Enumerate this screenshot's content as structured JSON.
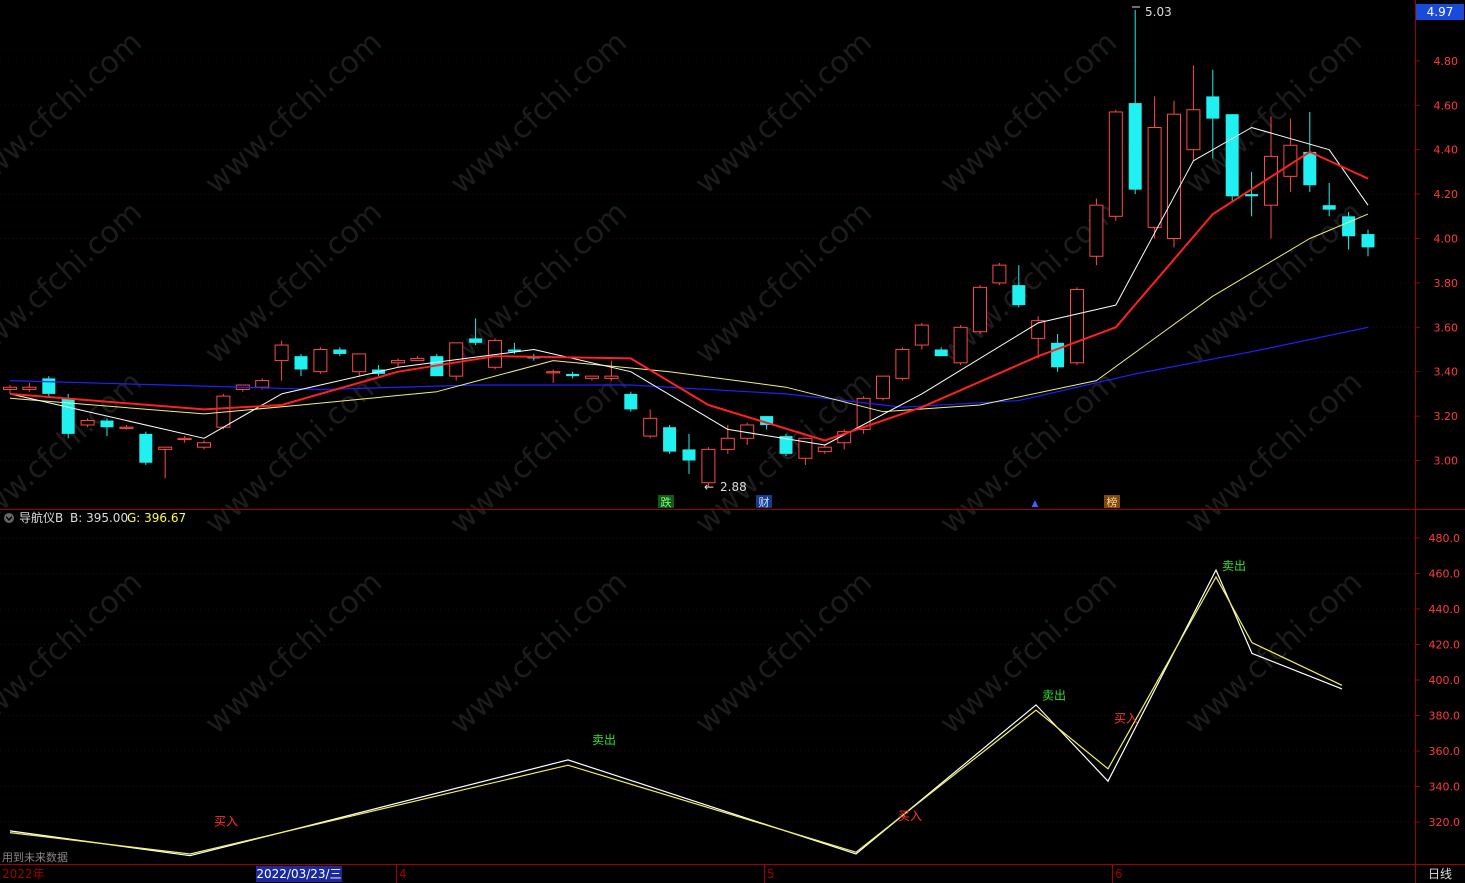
{
  "price_axis": {
    "ticks": [
      "4.80",
      "4.60",
      "4.40",
      "4.20",
      "4.00",
      "3.80",
      "3.60",
      "3.40",
      "3.20",
      "3.00"
    ],
    "current_price": "4.97",
    "current_color": "#1a4ad8"
  },
  "indicator": {
    "name": "导航仪B",
    "b_label": "B: 395.00",
    "g_label": "G: 396.67",
    "ticks": [
      "480.0",
      "460.0",
      "440.0",
      "420.0",
      "400.0",
      "380.0",
      "360.0",
      "340.0",
      "320.0"
    ],
    "note": "用到未来数据"
  },
  "date_bar": {
    "year": "2022年",
    "cursor_date": "2022/03/23/三",
    "months": [
      "4",
      "5",
      "6"
    ],
    "period": "日线"
  },
  "annotations": {
    "high": "5.03",
    "low": "2.88"
  },
  "event_tags": [
    "跌",
    "财",
    "▲",
    "榜"
  ],
  "signals": {
    "buy": "买入",
    "sell": "卖出"
  },
  "watermark": "www.cfchi.com",
  "colors": {
    "up": "#ff4848",
    "down": "#20f0f0",
    "ma_white": "#ffffff",
    "ma_red": "#ff2020",
    "ma_yellow": "#f0f080",
    "ma_blue": "#2020ff",
    "axis": "#a00000",
    "buy": "#ff3030",
    "sell": "#30e030"
  },
  "chart_data": [
    {
      "type": "candlestick",
      "title": "",
      "ylim": [
        2.8,
        5.05
      ],
      "candles": [
        [
          3.32,
          3.33,
          3.3,
          3.34
        ],
        [
          3.32,
          3.33,
          3.31,
          3.35
        ],
        [
          3.37,
          3.3,
          3.29,
          3.38
        ],
        [
          3.28,
          3.12,
          3.1,
          3.3
        ],
        [
          3.16,
          3.18,
          3.15,
          3.19
        ],
        [
          3.18,
          3.15,
          3.11,
          3.19
        ],
        [
          3.15,
          3.15,
          3.14,
          3.16
        ],
        [
          3.12,
          2.99,
          2.98,
          3.13
        ],
        [
          3.05,
          3.06,
          2.92,
          3.06
        ],
        [
          3.1,
          3.1,
          3.08,
          3.11
        ],
        [
          3.06,
          3.08,
          3.05,
          3.09
        ],
        [
          3.15,
          3.29,
          3.14,
          3.3
        ],
        [
          3.32,
          3.34,
          3.31,
          3.34
        ],
        [
          3.33,
          3.36,
          3.32,
          3.37
        ],
        [
          3.45,
          3.52,
          3.36,
          3.54
        ],
        [
          3.47,
          3.41,
          3.38,
          3.48
        ],
        [
          3.4,
          3.5,
          3.39,
          3.51
        ],
        [
          3.5,
          3.48,
          3.47,
          3.51
        ],
        [
          3.4,
          3.48,
          3.38,
          3.48
        ],
        [
          3.41,
          3.39,
          3.38,
          3.43
        ],
        [
          3.44,
          3.45,
          3.42,
          3.46
        ],
        [
          3.45,
          3.46,
          3.45,
          3.47
        ],
        [
          3.47,
          3.38,
          3.38,
          3.48
        ],
        [
          3.38,
          3.53,
          3.36,
          3.53
        ],
        [
          3.55,
          3.53,
          3.52,
          3.64
        ],
        [
          3.42,
          3.54,
          3.41,
          3.55
        ],
        [
          3.5,
          3.49,
          3.48,
          3.53
        ],
        [
          3.47,
          3.46,
          3.45,
          3.48
        ],
        [
          3.4,
          3.4,
          3.35,
          3.41
        ],
        [
          3.39,
          3.38,
          3.37,
          3.4
        ],
        [
          3.37,
          3.38,
          3.36,
          3.38
        ],
        [
          3.37,
          3.38,
          3.36,
          3.45
        ],
        [
          3.3,
          3.23,
          3.22,
          3.31
        ],
        [
          3.11,
          3.19,
          3.1,
          3.23
        ],
        [
          3.15,
          3.04,
          3.03,
          3.16
        ],
        [
          3.05,
          3.0,
          2.94,
          3.12
        ],
        [
          2.9,
          3.05,
          2.88,
          3.06
        ],
        [
          3.05,
          3.1,
          3.03,
          3.16
        ],
        [
          3.1,
          3.16,
          3.07,
          3.17
        ],
        [
          3.2,
          3.16,
          3.14,
          3.2
        ],
        [
          3.11,
          3.03,
          3.02,
          3.12
        ],
        [
          3.01,
          3.1,
          2.98,
          3.1
        ],
        [
          3.04,
          3.06,
          3.03,
          3.07
        ],
        [
          3.08,
          3.13,
          3.05,
          3.14
        ],
        [
          3.14,
          3.28,
          3.12,
          3.29
        ],
        [
          3.28,
          3.38,
          3.27,
          3.38
        ],
        [
          3.37,
          3.5,
          3.36,
          3.51
        ],
        [
          3.52,
          3.61,
          3.5,
          3.62
        ],
        [
          3.5,
          3.47,
          3.47,
          3.51
        ],
        [
          3.44,
          3.6,
          3.43,
          3.61
        ],
        [
          3.58,
          3.78,
          3.57,
          3.79
        ],
        [
          3.8,
          3.88,
          3.79,
          3.89
        ],
        [
          3.79,
          3.7,
          3.69,
          3.88
        ],
        [
          3.55,
          3.63,
          3.46,
          3.65
        ],
        [
          3.53,
          3.42,
          3.4,
          3.57
        ],
        [
          3.44,
          3.77,
          3.43,
          3.78
        ],
        [
          3.92,
          4.15,
          3.88,
          4.18
        ],
        [
          4.1,
          4.57,
          4.08,
          4.58
        ],
        [
          4.61,
          4.22,
          4.2,
          5.03
        ],
        [
          4.05,
          4.5,
          4.0,
          4.64
        ],
        [
          4.0,
          4.56,
          3.96,
          4.62
        ],
        [
          4.4,
          4.58,
          4.35,
          4.78
        ],
        [
          4.64,
          4.54,
          4.36,
          4.76
        ],
        [
          4.56,
          4.19,
          4.17,
          4.56
        ],
        [
          4.2,
          4.19,
          4.1,
          4.3
        ],
        [
          4.15,
          4.37,
          4.0,
          4.55
        ],
        [
          4.28,
          4.42,
          4.21,
          4.54
        ],
        [
          4.39,
          4.24,
          4.21,
          4.57
        ],
        [
          4.15,
          4.13,
          4.1,
          4.25
        ],
        [
          4.1,
          4.01,
          3.95,
          4.12
        ],
        [
          4.02,
          3.96,
          3.92,
          4.04
        ]
      ],
      "moving_averages": {
        "ma_white": [
          [
            0,
            3.3
          ],
          [
            10,
            3.1
          ],
          [
            14,
            3.3
          ],
          [
            20,
            3.42
          ],
          [
            27,
            3.5
          ],
          [
            32,
            3.4
          ],
          [
            37,
            3.14
          ],
          [
            42,
            3.07
          ],
          [
            47,
            3.3
          ],
          [
            53,
            3.62
          ],
          [
            57,
            3.7
          ],
          [
            61,
            4.35
          ],
          [
            64,
            4.5
          ],
          [
            68,
            4.4
          ],
          [
            70,
            4.15
          ]
        ],
        "ma_red": [
          [
            0,
            3.3
          ],
          [
            10,
            3.23
          ],
          [
            14,
            3.25
          ],
          [
            20,
            3.4
          ],
          [
            25,
            3.47
          ],
          [
            32,
            3.46
          ],
          [
            36,
            3.25
          ],
          [
            42,
            3.09
          ],
          [
            47,
            3.24
          ],
          [
            53,
            3.47
          ],
          [
            57,
            3.6
          ],
          [
            62,
            4.11
          ],
          [
            67,
            4.39
          ],
          [
            70,
            4.27
          ]
        ],
        "ma_yellow": [
          [
            0,
            3.28
          ],
          [
            10,
            3.21
          ],
          [
            15,
            3.25
          ],
          [
            22,
            3.31
          ],
          [
            28,
            3.45
          ],
          [
            34,
            3.4
          ],
          [
            40,
            3.33
          ],
          [
            45,
            3.22
          ],
          [
            50,
            3.25
          ],
          [
            56,
            3.36
          ],
          [
            62,
            3.74
          ],
          [
            67,
            4.0
          ],
          [
            70,
            4.11
          ]
        ],
        "ma_blue": [
          [
            0,
            3.36
          ],
          [
            8,
            3.34
          ],
          [
            16,
            3.32
          ],
          [
            24,
            3.34
          ],
          [
            32,
            3.34
          ],
          [
            40,
            3.3
          ],
          [
            46,
            3.24
          ],
          [
            52,
            3.27
          ],
          [
            58,
            3.39
          ],
          [
            64,
            3.49
          ],
          [
            70,
            3.6
          ]
        ]
      }
    },
    {
      "type": "line",
      "title": "导航仪B",
      "ylim": [
        300,
        490
      ],
      "series": [
        {
          "name": "B",
          "points": [
            [
              0,
              315
            ],
            [
              10,
              301
            ],
            [
              31,
              355
            ],
            [
              47,
              302
            ],
            [
              57,
              386
            ],
            [
              61,
              343
            ],
            [
              67,
              462
            ],
            [
              69,
              415
            ],
            [
              74,
              395
            ]
          ]
        },
        {
          "name": "G",
          "points": [
            [
              0,
              314
            ],
            [
              10,
              302
            ],
            [
              31,
              352
            ],
            [
              47,
              303
            ],
            [
              57,
              383
            ],
            [
              61,
              350
            ],
            [
              67,
              458
            ],
            [
              69,
              421
            ],
            [
              74,
              397
            ]
          ]
        }
      ],
      "signals": [
        {
          "kind": "买入",
          "x": 12,
          "y": 318
        },
        {
          "kind": "卖出",
          "x": 33,
          "y": 364
        },
        {
          "kind": "买入",
          "x": 50,
          "y": 321
        },
        {
          "kind": "卖出",
          "x": 58,
          "y": 389
        },
        {
          "kind": "买入",
          "x": 62,
          "y": 376
        },
        {
          "kind": "卖出",
          "x": 68,
          "y": 462
        }
      ]
    }
  ]
}
